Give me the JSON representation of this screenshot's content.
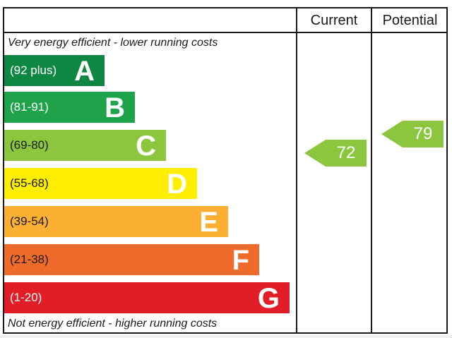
{
  "headers": {
    "current": "Current",
    "potential": "Potential"
  },
  "notes": {
    "top": "Very energy efficient - lower running costs",
    "bottom": "Not energy efficient - higher running costs"
  },
  "chart_data": {
    "type": "bar",
    "bands": [
      {
        "range": "(92 plus)",
        "letter": "A",
        "color": "#0e8743",
        "text_color": "#ffffff"
      },
      {
        "range": "(81-91)",
        "letter": "B",
        "color": "#1ea34a",
        "text_color": "#ffffff"
      },
      {
        "range": "(69-80)",
        "letter": "C",
        "color": "#8cc63f",
        "text_color": "#1a1a1a"
      },
      {
        "range": "(55-68)",
        "letter": "D",
        "color": "#ffee00",
        "text_color": "#1a1a1a"
      },
      {
        "range": "(39-54)",
        "letter": "E",
        "color": "#fbb034",
        "text_color": "#1a1a1a"
      },
      {
        "range": "(21-38)",
        "letter": "F",
        "color": "#ef6b2b",
        "text_color": "#1a1a1a"
      },
      {
        "range": "(1-20)",
        "letter": "G",
        "color": "#e31d28",
        "text_color": "#ffffff"
      }
    ],
    "current": {
      "value": 72,
      "band": "C",
      "color": "#8cc63f"
    },
    "potential": {
      "value": 79,
      "band": "C",
      "color": "#8cc63f"
    }
  }
}
